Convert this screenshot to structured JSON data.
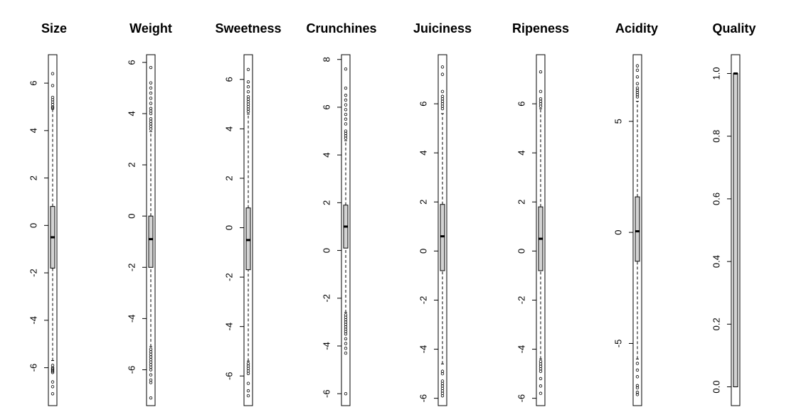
{
  "chart_data": [
    {
      "type": "box",
      "title": "Size",
      "ticks": [
        -6,
        -4,
        -2,
        0,
        2,
        4,
        6
      ],
      "ylim": [
        -7.6,
        7.2
      ],
      "box": {
        "whisker_low": -5.7,
        "q1": -1.8,
        "median": -0.5,
        "q3": 0.8,
        "whisker_high": 4.9
      },
      "outliers_low": [
        -5.9,
        -6.0,
        -6.05,
        -6.1,
        -6.15,
        -6.2,
        -6.6,
        -6.8,
        -7.1
      ],
      "outliers_high": [
        4.95,
        5.0,
        5.1,
        5.2,
        5.3,
        5.4,
        5.9,
        6.4
      ]
    },
    {
      "type": "box",
      "title": "Weight",
      "ticks": [
        -6,
        -4,
        -2,
        0,
        2,
        4,
        6
      ],
      "ylim": [
        -7.4,
        6.3
      ],
      "box": {
        "whisker_low": -5.1,
        "q1": -2.0,
        "median": -0.9,
        "q3": 0.0,
        "whisker_high": 3.3
      },
      "outliers_low": [
        -5.2,
        -5.3,
        -5.4,
        -5.5,
        -5.6,
        -5.7,
        -5.8,
        -5.9,
        -6.0,
        -6.2,
        -6.4,
        -6.5,
        -7.1
      ],
      "outliers_high": [
        3.4,
        3.5,
        3.6,
        3.7,
        3.8,
        4.0,
        4.1,
        4.2,
        4.4,
        4.6,
        4.8,
        5.0,
        5.2,
        5.8
      ]
    },
    {
      "type": "box",
      "title": "Sweetness",
      "ticks": [
        -6,
        -4,
        -2,
        0,
        2,
        4,
        6
      ],
      "ylim": [
        -7.2,
        7.0
      ],
      "box": {
        "whisker_low": -5.4,
        "q1": -1.7,
        "median": -0.5,
        "q3": 0.8,
        "whisker_high": 4.6
      },
      "outliers_low": [
        -5.5,
        -5.6,
        -5.7,
        -5.8,
        -5.9,
        -6.3,
        -6.6,
        -6.8
      ],
      "outliers_high": [
        4.7,
        4.8,
        4.9,
        5.0,
        5.1,
        5.2,
        5.3,
        5.5,
        5.7,
        5.9,
        6.4
      ]
    },
    {
      "type": "box",
      "title": "Crunchines",
      "ticks": [
        -6,
        -4,
        -2,
        0,
        2,
        4,
        6,
        8
      ],
      "ylim": [
        -6.5,
        8.2
      ],
      "box": {
        "whisker_low": -2.6,
        "q1": 0.1,
        "median": 1.0,
        "q3": 1.9,
        "whisker_high": 4.6
      },
      "outliers_low": [
        -2.7,
        -2.8,
        -2.9,
        -3.0,
        -3.1,
        -3.2,
        -3.3,
        -3.4,
        -3.5,
        -3.7,
        -3.9,
        -4.1,
        -4.3,
        -6.0
      ],
      "outliers_high": [
        4.7,
        4.8,
        4.9,
        5.0,
        5.3,
        5.5,
        5.7,
        5.9,
        6.1,
        6.3,
        6.5,
        6.8,
        7.6
      ]
    },
    {
      "type": "box",
      "title": "Juiciness",
      "ticks": [
        -6,
        -4,
        -2,
        0,
        2,
        4,
        6
      ],
      "ylim": [
        -6.3,
        8.0
      ],
      "box": {
        "whisker_low": -4.6,
        "q1": -0.8,
        "median": 0.6,
        "q3": 1.9,
        "whisker_high": 5.6
      },
      "outliers_low": [
        -4.9,
        -5.0,
        -5.3,
        -5.4,
        -5.5,
        -5.6,
        -5.7,
        -5.8,
        -5.9
      ],
      "outliers_high": [
        5.8,
        5.9,
        6.0,
        6.1,
        6.2,
        6.3,
        6.5,
        7.2,
        7.5
      ]
    },
    {
      "type": "box",
      "title": "Ripeness",
      "ticks": [
        -6,
        -4,
        -2,
        0,
        2,
        4,
        6
      ],
      "ylim": [
        -6.3,
        8.0
      ],
      "box": {
        "whisker_low": -4.4,
        "q1": -0.8,
        "median": 0.5,
        "q3": 1.8,
        "whisker_high": 5.8
      },
      "outliers_low": [
        -4.5,
        -4.6,
        -4.7,
        -4.8,
        -4.9,
        -5.2,
        -5.5,
        -5.8
      ],
      "outliers_high": [
        5.9,
        6.0,
        6.1,
        6.2,
        6.5,
        7.3
      ]
    },
    {
      "type": "box",
      "title": "Acidity",
      "ticks": [
        -5,
        0,
        5
      ],
      "ylim": [
        -7.8,
        8.0
      ],
      "box": {
        "whisker_low": -5.7,
        "q1": -1.3,
        "median": 0.05,
        "q3": 1.6,
        "whisker_high": 5.9
      },
      "outliers_low": [
        -5.9,
        -6.2,
        -6.5,
        -6.9,
        -7.0,
        -7.2,
        -7.3
      ],
      "outliers_high": [
        6.1,
        6.2,
        6.3,
        6.4,
        6.5,
        6.7,
        7.0,
        7.3,
        7.5
      ]
    },
    {
      "type": "box",
      "title": "Quality",
      "ticks": [
        0.0,
        0.2,
        0.4,
        0.6,
        0.8,
        1.0
      ],
      "tick_labels": [
        "0.0",
        "0.2",
        "0.4",
        "0.6",
        "0.8",
        "1.0"
      ],
      "ylim": [
        -0.06,
        1.06
      ],
      "box": {
        "whisker_low": 0.0,
        "q1": 0.0,
        "median": 1.0,
        "q3": 1.0,
        "whisker_high": 1.0
      },
      "outliers_low": [],
      "outliers_high": []
    }
  ]
}
